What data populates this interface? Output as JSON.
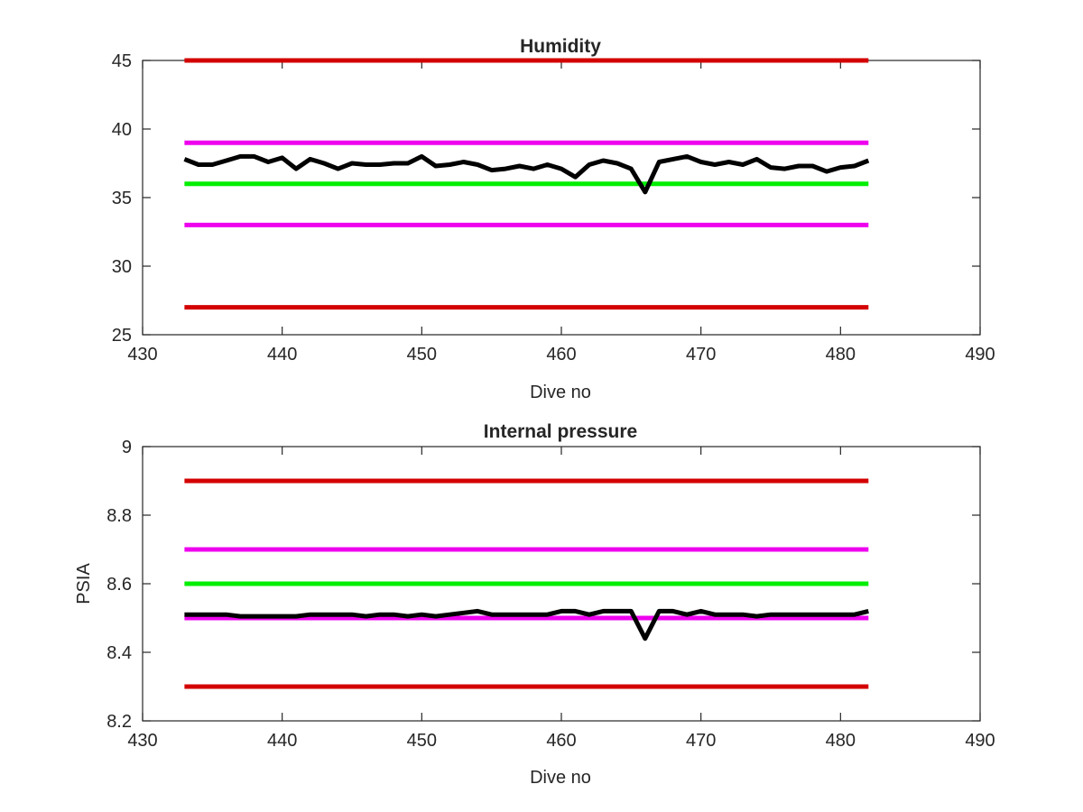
{
  "colors": {
    "red": "#d40000",
    "magenta": "#ee00ee",
    "green": "#00ee00",
    "black": "#000000",
    "background": "#ffffff",
    "axis": "#262626"
  },
  "chart_data": [
    {
      "type": "line",
      "title": "Humidity",
      "xlabel": "Dive no",
      "ylabel": "",
      "xlim": [
        430,
        490
      ],
      "ylim": [
        25,
        45
      ],
      "xticks": [
        430,
        440,
        450,
        460,
        470,
        480,
        490
      ],
      "yticks": [
        25,
        30,
        35,
        40,
        45
      ],
      "grid": false,
      "legend": "none",
      "series": [
        {
          "color": "#d40000",
          "x": [
            433,
            482
          ],
          "y": [
            45,
            45
          ]
        },
        {
          "color": "#ee00ee",
          "x": [
            433,
            482
          ],
          "y": [
            39,
            39
          ]
        },
        {
          "color": "#00ee00",
          "x": [
            433,
            482
          ],
          "y": [
            36,
            36
          ]
        },
        {
          "color": "#ee00ee",
          "x": [
            433,
            482
          ],
          "y": [
            33,
            33
          ]
        },
        {
          "color": "#d40000",
          "x": [
            433,
            482
          ],
          "y": [
            27,
            27
          ]
        },
        {
          "color": "#000000",
          "x": [
            433,
            434,
            435,
            436,
            437,
            438,
            439,
            440,
            441,
            442,
            443,
            444,
            445,
            446,
            447,
            448,
            449,
            450,
            451,
            452,
            453,
            454,
            455,
            456,
            457,
            458,
            459,
            460,
            461,
            462,
            463,
            464,
            465,
            466,
            467,
            468,
            469,
            470,
            471,
            472,
            473,
            474,
            475,
            476,
            477,
            478,
            479,
            480,
            481,
            482
          ],
          "y": [
            37.8,
            37.4,
            37.4,
            37.7,
            38.0,
            38.0,
            37.6,
            37.9,
            37.1,
            37.8,
            37.5,
            37.1,
            37.5,
            37.4,
            37.4,
            37.5,
            37.5,
            38.0,
            37.3,
            37.4,
            37.6,
            37.4,
            37.0,
            37.1,
            37.3,
            37.1,
            37.4,
            37.1,
            36.5,
            37.4,
            37.7,
            37.5,
            37.1,
            35.4,
            37.6,
            37.8,
            38.0,
            37.6,
            37.4,
            37.6,
            37.4,
            37.8,
            37.2,
            37.1,
            37.3,
            37.3,
            36.9,
            37.2,
            37.3,
            37.7
          ]
        }
      ]
    },
    {
      "type": "line",
      "title": "Internal pressure",
      "xlabel": "Dive no",
      "ylabel": "PSIA",
      "xlim": [
        430,
        490
      ],
      "ylim": [
        8.2,
        9
      ],
      "xticks": [
        430,
        440,
        450,
        460,
        470,
        480,
        490
      ],
      "yticks": [
        "8.2",
        "8.4",
        "8.6",
        "8.8",
        "9"
      ],
      "grid": false,
      "legend": "none",
      "series": [
        {
          "color": "#d40000",
          "x": [
            433,
            482
          ],
          "y": [
            8.9,
            8.9
          ]
        },
        {
          "color": "#ee00ee",
          "x": [
            433,
            482
          ],
          "y": [
            8.7,
            8.7
          ]
        },
        {
          "color": "#00ee00",
          "x": [
            433,
            482
          ],
          "y": [
            8.6,
            8.6
          ]
        },
        {
          "color": "#ee00ee",
          "x": [
            433,
            482
          ],
          "y": [
            8.5,
            8.5
          ]
        },
        {
          "color": "#d40000",
          "x": [
            433,
            482
          ],
          "y": [
            8.3,
            8.3
          ]
        },
        {
          "color": "#000000",
          "x": [
            433,
            434,
            435,
            436,
            437,
            438,
            439,
            440,
            441,
            442,
            443,
            444,
            445,
            446,
            447,
            448,
            449,
            450,
            451,
            452,
            453,
            454,
            455,
            456,
            457,
            458,
            459,
            460,
            461,
            462,
            463,
            464,
            465,
            466,
            467,
            468,
            469,
            470,
            471,
            472,
            473,
            474,
            475,
            476,
            477,
            478,
            479,
            480,
            481,
            482
          ],
          "y": [
            8.51,
            8.51,
            8.51,
            8.51,
            8.505,
            8.505,
            8.505,
            8.505,
            8.505,
            8.51,
            8.51,
            8.51,
            8.51,
            8.505,
            8.51,
            8.51,
            8.505,
            8.51,
            8.505,
            8.51,
            8.515,
            8.52,
            8.51,
            8.51,
            8.51,
            8.51,
            8.51,
            8.52,
            8.52,
            8.51,
            8.52,
            8.52,
            8.52,
            8.44,
            8.52,
            8.52,
            8.51,
            8.52,
            8.51,
            8.51,
            8.51,
            8.505,
            8.51,
            8.51,
            8.51,
            8.51,
            8.51,
            8.51,
            8.51,
            8.52
          ]
        }
      ]
    }
  ]
}
